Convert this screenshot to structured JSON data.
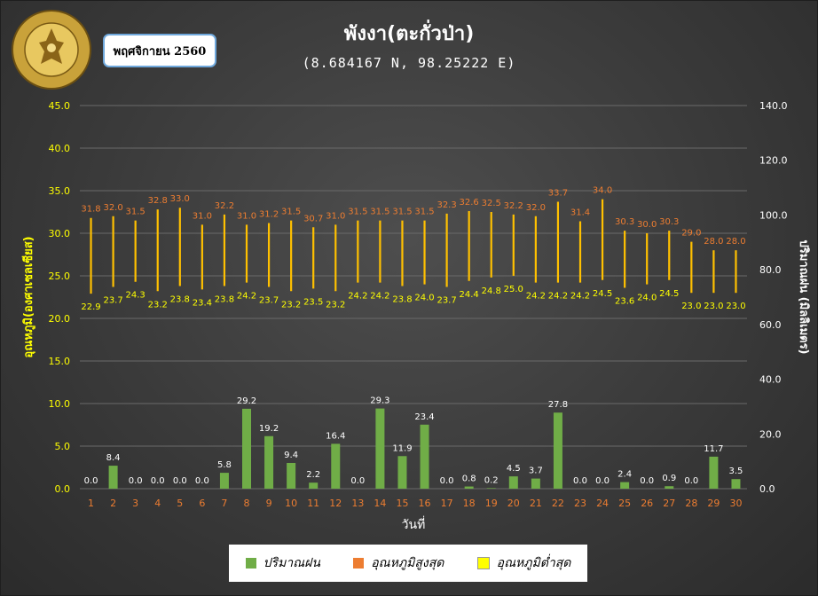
{
  "badge": "พฤศจิกายน 2560",
  "logo_text": {
    "top": "กรมอุตุนิยมวิทยา",
    "bottom": "METEOROLOGICAL DEPARTMENT"
  },
  "colors": {
    "rain": "#70ad47",
    "tmax": "#ed7d31",
    "tmin": "#ffff00",
    "tmin_bar": "#ffc000",
    "left_axis": "#ffff00",
    "right_axis": "#ffffff",
    "day_ticks": "#ed7d31"
  },
  "chart_data": {
    "type": "bar",
    "title": "พังงา(ตะกั่วป่า)",
    "subtitle": "(8.684167 N, 98.25222 E)",
    "xlabel": "วันที่",
    "ylabel_left": "อุณหภูมิ(องศาเซลเซียส)",
    "ylabel_right": "ปริมาณฝน (มิลลิเมตร)",
    "categories": [
      "1",
      "2",
      "3",
      "4",
      "5",
      "6",
      "7",
      "8",
      "9",
      "10",
      "11",
      "12",
      "13",
      "14",
      "15",
      "16",
      "17",
      "18",
      "19",
      "20",
      "21",
      "22",
      "23",
      "24",
      "25",
      "26",
      "27",
      "28",
      "29",
      "30"
    ],
    "left_axis": {
      "min": 0,
      "max": 45,
      "ticks": [
        "0.0",
        "5.0",
        "10.0",
        "15.0",
        "20.0",
        "25.0",
        "30.0",
        "35.0",
        "40.0",
        "45.0"
      ]
    },
    "right_axis": {
      "min": 0,
      "max": 140,
      "ticks": [
        "0.0",
        "20.0",
        "40.0",
        "60.0",
        "80.0",
        "100.0",
        "120.0",
        "140.0"
      ]
    },
    "grid": true,
    "legend_position": "bottom",
    "legend": [
      "ปริมาณฝน",
      "อุณหภูมิสูงสุด",
      "อุณหภูมิต่ำสุด"
    ],
    "series": [
      {
        "name": "ปริมาณฝน",
        "axis": "right",
        "values": [
          0.0,
          8.4,
          0.0,
          0.0,
          0.0,
          0.0,
          5.8,
          29.2,
          19.2,
          9.4,
          2.2,
          16.4,
          0.0,
          29.3,
          11.9,
          23.4,
          0.0,
          0.8,
          0.2,
          4.5,
          3.7,
          27.8,
          0.0,
          0.0,
          2.4,
          0.0,
          0.9,
          0.0,
          11.7,
          3.5
        ],
        "labels": [
          "0.0",
          "8.4",
          "0.0",
          "0.0",
          "0.0",
          "0.0",
          "5.8",
          "29.2",
          "19.2",
          "9.4",
          "2.2",
          "16.4",
          "0.0",
          "29.3",
          "11.9",
          "23.4",
          "0.0",
          "0.8",
          "0.2",
          "4.5",
          "3.7",
          "27.8",
          "0.0",
          "0.0",
          "2.4",
          "0.0",
          "0.9",
          "0.0",
          "11.7",
          "3.5"
        ]
      },
      {
        "name": "อุณหภูมิสูงสุด",
        "axis": "left",
        "values": [
          31.8,
          32.0,
          31.5,
          32.8,
          33.0,
          31.0,
          32.2,
          31.0,
          31.2,
          31.5,
          30.7,
          31.0,
          31.5,
          31.5,
          31.5,
          31.5,
          32.3,
          32.6,
          32.5,
          32.2,
          32.0,
          33.7,
          31.4,
          34.0,
          30.3,
          30.0,
          30.3,
          29.0,
          28.0,
          28.0
        ],
        "labels": [
          "31.8",
          "32.0",
          "31.5",
          "32.8",
          "33.0",
          "31.0",
          "32.2",
          "31.0",
          "31.2",
          "31.5",
          "30.7",
          "31.0",
          "31.5",
          "31.5",
          "31.5",
          "31.5",
          "32.3",
          "32.6",
          "32.5",
          "32.2",
          "32.0",
          "33.7",
          "31.4",
          "34.0",
          "30.3",
          "30.0",
          "30.3",
          "29.0",
          "28.0",
          "28.0"
        ]
      },
      {
        "name": "อุณหภูมิต่ำสุด",
        "axis": "left",
        "values": [
          22.9,
          23.7,
          24.3,
          23.2,
          23.8,
          23.4,
          23.8,
          24.2,
          23.7,
          23.2,
          23.5,
          23.2,
          24.2,
          24.2,
          23.8,
          24.0,
          23.7,
          24.4,
          24.8,
          25.0,
          24.2,
          24.2,
          24.2,
          24.5,
          23.6,
          24.0,
          24.5,
          23.0,
          23.0,
          23.0
        ],
        "labels": [
          "22.9",
          "23.7",
          "24.3",
          "23.2",
          "23.8",
          "23.4",
          "23.8",
          "24.2",
          "23.7",
          "23.2",
          "23.5",
          "23.2",
          "24.2",
          "24.2",
          "23.8",
          "24.0",
          "23.7",
          "24.4",
          "24.8",
          "25.0",
          "24.2",
          "24.2",
          "24.2",
          "24.5",
          "23.6",
          "24.0",
          "24.5",
          "23.0",
          "23.0",
          "23.0"
        ]
      }
    ]
  }
}
